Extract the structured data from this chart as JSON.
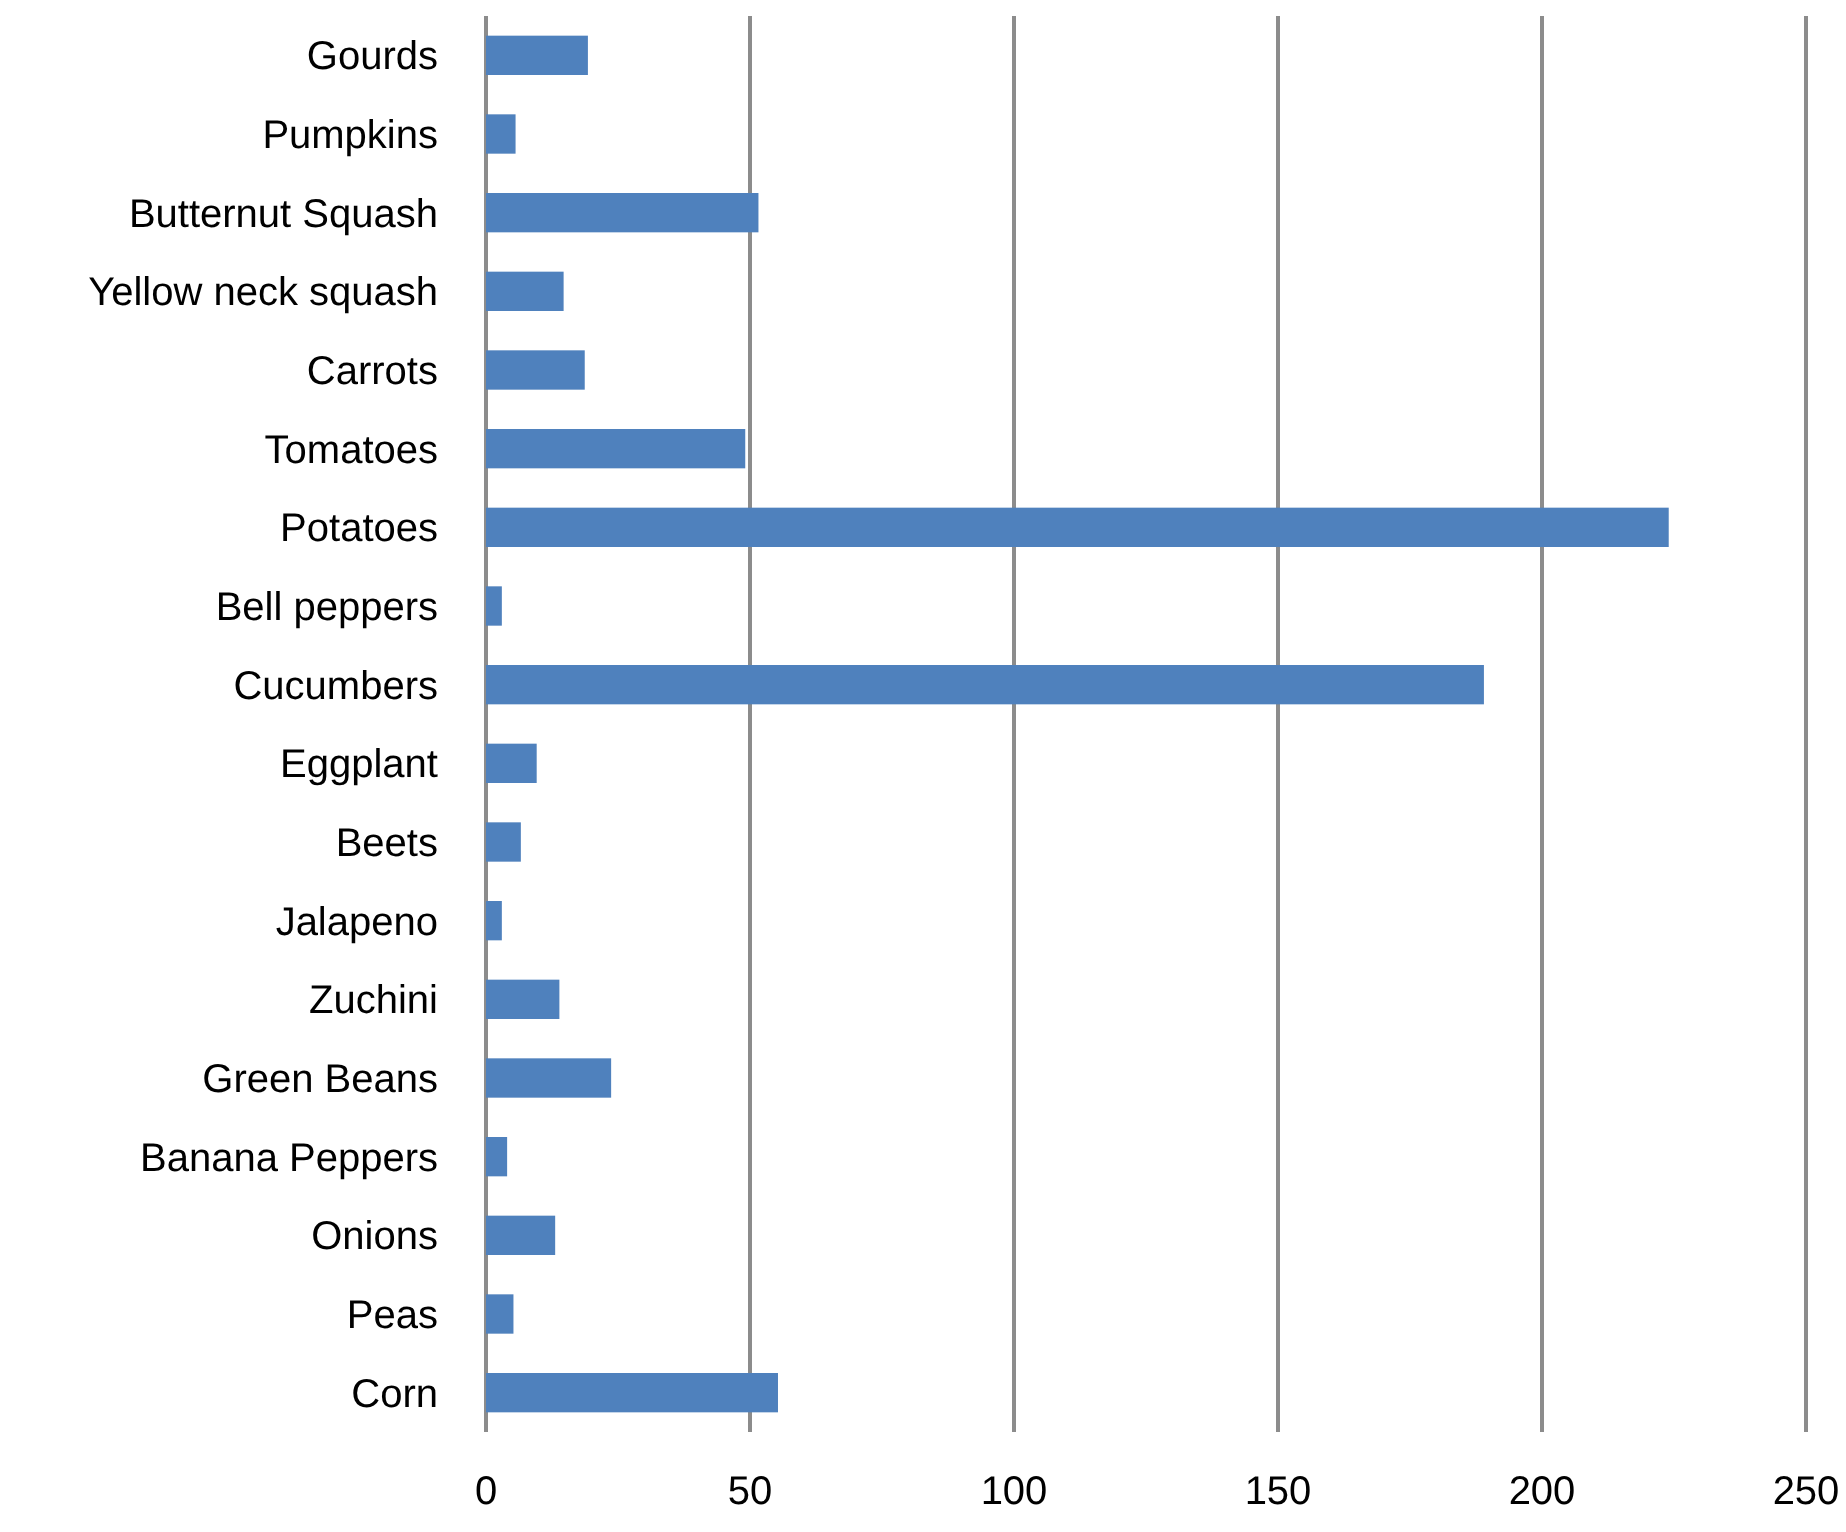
{
  "chart_data": {
    "type": "bar",
    "orientation": "horizontal",
    "categories": [
      "Gourds",
      "Pumpkins",
      "Butternut Squash",
      "Yellow neck squash",
      "Carrots",
      "Tomatoes",
      "Potatoes",
      "Bell peppers",
      "Cucumbers",
      "Eggplant",
      "Beets",
      "Jalapeno",
      "Zuchini",
      "Green Beans",
      "Banana Peppers",
      "Onions",
      "Peas",
      "Corn"
    ],
    "values": [
      19.3,
      5.6,
      51.6,
      14.7,
      18.7,
      49.1,
      224,
      3,
      189,
      9.6,
      6.6,
      3,
      13.9,
      23.7,
      4,
      13.1,
      5.2,
      55.3
    ],
    "color": "#4f81bd",
    "xlim": [
      0,
      250
    ],
    "xticks": [
      0,
      50,
      100,
      150,
      200,
      250
    ],
    "grid": "x"
  }
}
